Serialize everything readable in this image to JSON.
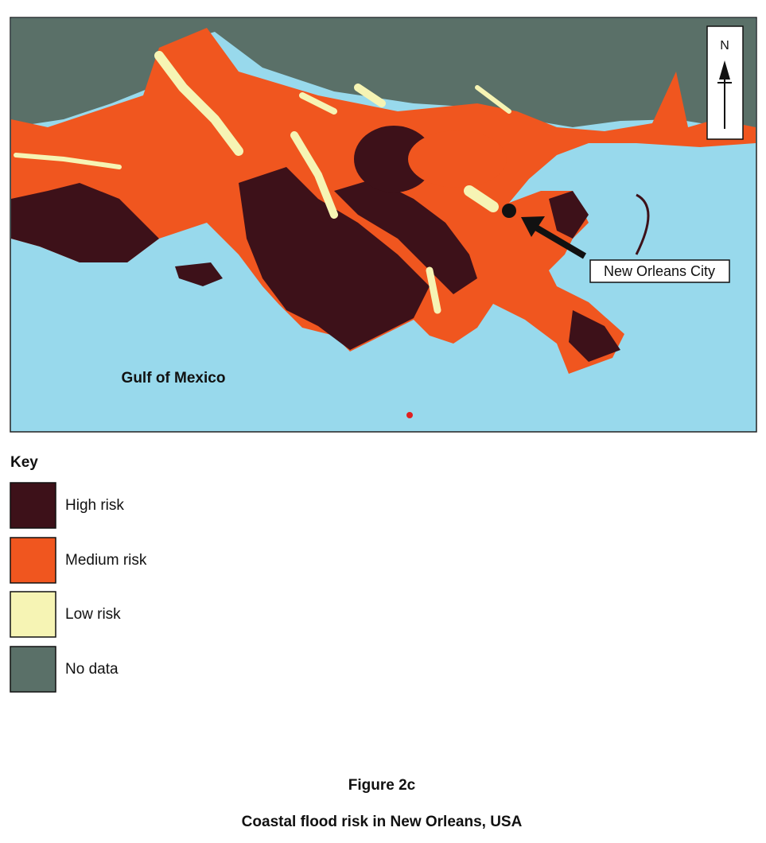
{
  "map": {
    "north_label": "N",
    "city_label": "New Orleans City",
    "sea_label": "Gulf of Mexico"
  },
  "key": {
    "title": "Key",
    "items": [
      {
        "label": "High risk",
        "color": "#3d1119"
      },
      {
        "label": "Medium risk",
        "color": "#f0561f"
      },
      {
        "label": "Low risk",
        "color": "#f6f4b4"
      },
      {
        "label": "No data",
        "color": "#5a7068"
      }
    ]
  },
  "caption": {
    "figure": "Figure 2c",
    "title": "Coastal flood risk in New Orleans, USA"
  }
}
